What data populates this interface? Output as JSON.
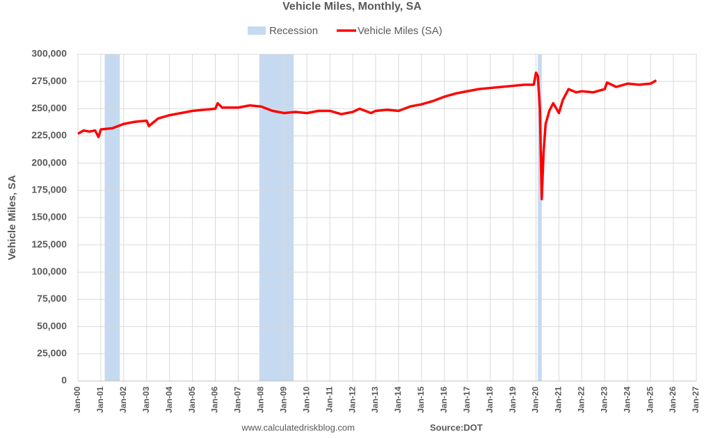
{
  "chart_data": {
    "type": "line",
    "title": "Vehicle Miles, Monthly, SA",
    "y_label": "Vehicle Miles, SA",
    "footer": "www.calculatedriskblog.com",
    "source": "Source:DOT",
    "recessions": {
      "name": "Recession",
      "color": "#c5d9f1",
      "spans": [
        [
          2001.17,
          2001.83
        ],
        [
          2007.92,
          2009.42
        ],
        [
          2020.08,
          2020.25
        ]
      ]
    },
    "series": [
      {
        "name": "Vehicle Miles (SA)",
        "color": "#ff0000",
        "x": [
          2000.0,
          2000.25,
          2000.5,
          2000.75,
          2000.9,
          2001.0,
          2001.5,
          2002.0,
          2002.5,
          2003.0,
          2003.1,
          2003.5,
          2004.0,
          2004.5,
          2005.0,
          2005.5,
          2006.0,
          2006.1,
          2006.3,
          2007.0,
          2007.5,
          2008.0,
          2008.5,
          2009.0,
          2009.5,
          2010.0,
          2010.5,
          2011.0,
          2011.5,
          2012.0,
          2012.3,
          2012.8,
          2013.0,
          2013.5,
          2014.0,
          2014.5,
          2015.0,
          2015.5,
          2016.0,
          2016.5,
          2017.0,
          2017.5,
          2018.0,
          2018.5,
          2019.0,
          2019.5,
          2019.9,
          2020.0,
          2020.08,
          2020.17,
          2020.25,
          2020.33,
          2020.42,
          2020.58,
          2020.75,
          2020.92,
          2021.0,
          2021.17,
          2021.42,
          2021.75,
          2022.0,
          2022.5,
          2023.0,
          2023.1,
          2023.5,
          2024.0,
          2024.5,
          2025.0,
          2025.25
        ],
        "values": [
          227000,
          230000,
          229000,
          230000,
          224000,
          231000,
          232000,
          236000,
          238000,
          239000,
          234000,
          241000,
          244000,
          246000,
          248000,
          249000,
          250000,
          255000,
          251000,
          251000,
          253000,
          252000,
          248000,
          246000,
          247000,
          246000,
          248000,
          248000,
          245000,
          247000,
          250000,
          246000,
          248000,
          249000,
          248000,
          252000,
          254000,
          257000,
          261000,
          264000,
          266000,
          268000,
          269000,
          270000,
          271000,
          272000,
          272000,
          283000,
          280000,
          250000,
          167000,
          210000,
          236000,
          248000,
          255000,
          249000,
          246000,
          258000,
          268000,
          265000,
          266000,
          265000,
          268000,
          274000,
          270000,
          273000,
          272000,
          273000,
          276000
        ]
      }
    ],
    "xlim": [
      2000,
      2027
    ],
    "xticks": [
      {
        "value": 2000,
        "label": "Jan-00"
      },
      {
        "value": 2001,
        "label": "Jan-01"
      },
      {
        "value": 2002,
        "label": "Jan-02"
      },
      {
        "value": 2003,
        "label": "Jan-03"
      },
      {
        "value": 2004,
        "label": "Jan-04"
      },
      {
        "value": 2005,
        "label": "Jan-05"
      },
      {
        "value": 2006,
        "label": "Jan-06"
      },
      {
        "value": 2007,
        "label": "Jan-07"
      },
      {
        "value": 2008,
        "label": "Jan-08"
      },
      {
        "value": 2009,
        "label": "Jan-09"
      },
      {
        "value": 2010,
        "label": "Jan-10"
      },
      {
        "value": 2011,
        "label": "Jan-11"
      },
      {
        "value": 2012,
        "label": "Jan-12"
      },
      {
        "value": 2013,
        "label": "Jan-13"
      },
      {
        "value": 2014,
        "label": "Jan-14"
      },
      {
        "value": 2015,
        "label": "Jan-15"
      },
      {
        "value": 2016,
        "label": "Jan-16"
      },
      {
        "value": 2017,
        "label": "Jan-17"
      },
      {
        "value": 2018,
        "label": "Jan-18"
      },
      {
        "value": 2019,
        "label": "Jan-19"
      },
      {
        "value": 2020,
        "label": "Jan-20"
      },
      {
        "value": 2021,
        "label": "Jan-21"
      },
      {
        "value": 2022,
        "label": "Jan-22"
      },
      {
        "value": 2023,
        "label": "Jan-23"
      },
      {
        "value": 2024,
        "label": "Jan-24"
      },
      {
        "value": 2025,
        "label": "Jan-25"
      },
      {
        "value": 2026,
        "label": "Jan-26"
      },
      {
        "value": 2027,
        "label": "Jan-27"
      }
    ],
    "ylim": [
      0,
      300000
    ],
    "yticks": [
      0,
      {
        "value": 25000,
        "label": "25,000"
      },
      {
        "value": 50000,
        "label": "50,000"
      },
      {
        "value": 75000,
        "label": "75,000"
      },
      {
        "value": 100000,
        "label": "100,000"
      },
      {
        "value": 125000,
        "label": "125,000"
      },
      {
        "value": 150000,
        "label": "150,000"
      },
      {
        "value": 175000,
        "label": "175,000"
      },
      {
        "value": 200000,
        "label": "200,000"
      },
      {
        "value": 225000,
        "label": "225,000"
      },
      {
        "value": 250000,
        "label": "250,000"
      },
      {
        "value": 275000,
        "label": "275,000"
      },
      {
        "value": 300000,
        "label": "300,000"
      }
    ],
    "grid": true
  }
}
